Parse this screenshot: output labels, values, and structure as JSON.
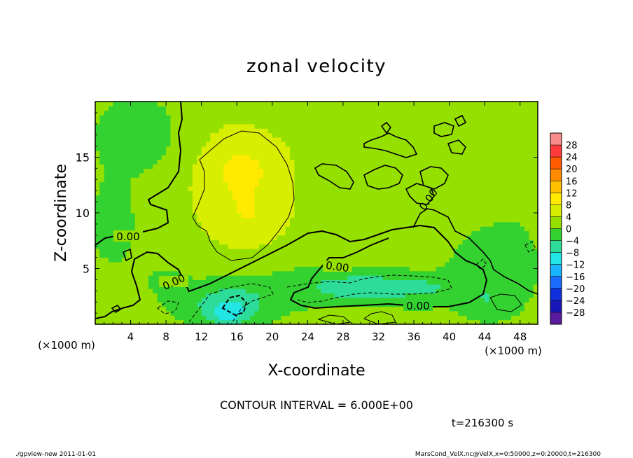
{
  "chart_data": {
    "type": "heatmap",
    "title": "zonal velocity",
    "xlabel": "X-coordinate",
    "ylabel": "Z-coordinate",
    "x_unit": "(×1000 m)",
    "y_unit": "(×1000 m)",
    "xlim": [
      0,
      50
    ],
    "ylim": [
      0,
      20
    ],
    "x_ticks": [
      4,
      8,
      12,
      16,
      20,
      24,
      28,
      32,
      36,
      40,
      44,
      48
    ],
    "y_ticks": [
      5,
      10,
      15
    ],
    "colorbar": {
      "levels": [
        28,
        24,
        20,
        16,
        12,
        8,
        4,
        0,
        -4,
        -8,
        -12,
        -16,
        -20,
        -24,
        -28
      ],
      "colors": [
        "#f88b8b",
        "#ff3a3a",
        "#ff5a00",
        "#ff8c00",
        "#ffc000",
        "#ffea00",
        "#d8ee00",
        "#96e000",
        "#34d230",
        "#2edc9a",
        "#22e5e5",
        "#18b4ff",
        "#1a6cff",
        "#1030e0",
        "#1818b8",
        "#5a1aa0"
      ]
    },
    "contour_interval_text": "CONTOUR INTERVAL = 6.000E+00",
    "contour_labels": [
      "0.00",
      "0.00",
      "0.00",
      "0.00",
      "0.00"
    ],
    "time_text": "t=216300 s",
    "footer_left": "./gpview-new   2011-01-01",
    "footer_right": "MarsCond_VelX.nc@VelX,x=0:50000,z=0:20000,t=216300",
    "blobs": [
      {
        "x": 16.0,
        "z": 13.0,
        "rx": 6.5,
        "rz": 6.0,
        "v": 5
      },
      {
        "x": 17.5,
        "z": 9.5,
        "rx": 4.0,
        "rz": 2.5,
        "v": 3
      },
      {
        "x": 17.0,
        "z": 14.0,
        "rx": 3.5,
        "rz": 2.0,
        "v": 3
      },
      {
        "x": 15.0,
        "z": 1.8,
        "rx": 5.0,
        "rz": 2.0,
        "v": -8
      },
      {
        "x": 15.2,
        "z": 1.0,
        "rx": 2.0,
        "rz": 1.0,
        "v": -6
      },
      {
        "x": 32.0,
        "z": 3.3,
        "rx": 7.0,
        "rz": 1.4,
        "v": -7
      },
      {
        "x": 38.0,
        "z": 3.3,
        "rx": 3.0,
        "rz": 1.0,
        "v": -2
      },
      {
        "x": 25.0,
        "z": 3.5,
        "rx": 8.0,
        "rz": 2.0,
        "v": -3
      },
      {
        "x": 5.0,
        "z": 17.0,
        "rx": 5.0,
        "rz": 3.5,
        "v": -4
      },
      {
        "x": 2.0,
        "z": 9.0,
        "rx": 3.0,
        "rz": 4.0,
        "v": -3
      },
      {
        "x": 8.0,
        "z": 4.0,
        "rx": 3.0,
        "rz": 2.0,
        "v": -2
      },
      {
        "x": 45.0,
        "z": 5.0,
        "rx": 5.0,
        "rz": 4.0,
        "v": -4
      },
      {
        "x": 44.0,
        "z": 2.0,
        "rx": 3.0,
        "rz": 1.5,
        "v": -3
      },
      {
        "x": 30.0,
        "z": 10.0,
        "rx": 6.0,
        "rz": 4.0,
        "v": 2
      },
      {
        "x": 40.0,
        "z": 14.0,
        "rx": 6.0,
        "rz": 5.0,
        "v": 1
      },
      {
        "x": 26.0,
        "z": 17.0,
        "rx": 5.0,
        "rz": 3.0,
        "v": 1
      },
      {
        "x": 48.0,
        "z": 14.0,
        "rx": 3.0,
        "rz": 6.0,
        "v": -1
      },
      {
        "x": 32.0,
        "z": 0.6,
        "rx": 6.0,
        "rz": 0.8,
        "v": 1
      }
    ]
  }
}
